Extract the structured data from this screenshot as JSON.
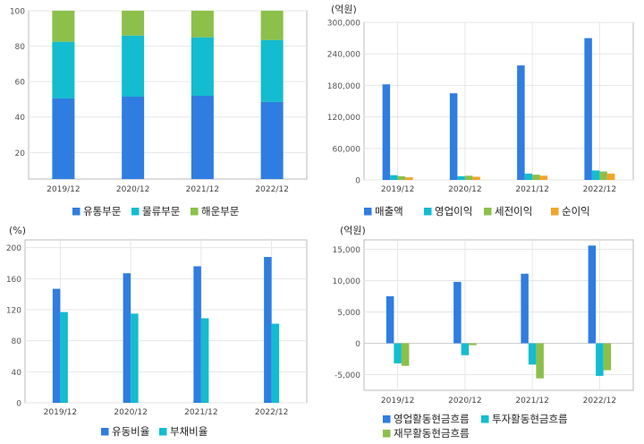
{
  "colors": {
    "blue": "#2f7de1",
    "cyan": "#14bccf",
    "green": "#8cc04a",
    "orange": "#f2a52a",
    "grid": "#e6e6e6",
    "axis": "#bbbbbb"
  },
  "chart_data": [
    {
      "type": "bar",
      "stacked": true,
      "categories": [
        "2019/12",
        "2020/12",
        "2021/12",
        "2022/12"
      ],
      "series": [
        {
          "name": "유통부문",
          "values": [
            50.5,
            51.5,
            52.0,
            48.5
          ]
        },
        {
          "name": "물류부문",
          "values": [
            32.0,
            34.5,
            33.0,
            35.0
          ]
        },
        {
          "name": "해운부문",
          "values": [
            17.5,
            14.0,
            15.0,
            16.5
          ]
        }
      ],
      "yticks": [
        "20",
        "40",
        "60",
        "80",
        "100"
      ],
      "ylim": [
        5,
        100
      ],
      "unit": "",
      "grid": true,
      "legend": "bottom"
    },
    {
      "type": "bar",
      "categories": [
        "2019/12",
        "2020/12",
        "2021/12",
        "2022/12"
      ],
      "series": [
        {
          "name": "매출액",
          "values": [
            182000,
            165000,
            218000,
            270000
          ]
        },
        {
          "name": "영업이익",
          "values": [
            9000,
            7000,
            12000,
            18000
          ]
        },
        {
          "name": "세전이익",
          "values": [
            7000,
            8000,
            10000,
            16000
          ]
        },
        {
          "name": "순이익",
          "values": [
            5000,
            6000,
            8000,
            12000
          ]
        }
      ],
      "yticks": [
        "0",
        "60,000",
        "120,000",
        "180,000",
        "240,000",
        "300,000"
      ],
      "ylim": [
        0,
        300000
      ],
      "unit": "(억원)",
      "grid": true,
      "legend": "bottom"
    },
    {
      "type": "bar",
      "categories": [
        "2019/12",
        "2020/12",
        "2021/12",
        "2022/12"
      ],
      "series": [
        {
          "name": "유동비율",
          "values": [
            147,
            167,
            176,
            188
          ]
        },
        {
          "name": "부채비율",
          "values": [
            117,
            115,
            109,
            102
          ]
        }
      ],
      "yticks": [
        "0",
        "40",
        "80",
        "120",
        "160",
        "200"
      ],
      "ylim": [
        0,
        210
      ],
      "unit": "(%)",
      "grid": true,
      "legend": "bottom"
    },
    {
      "type": "bar",
      "categories": [
        "2019/12",
        "2020/12",
        "2021/12",
        "2022/12"
      ],
      "series": [
        {
          "name": "영업활동현금흐름",
          "values": [
            7500,
            9800,
            11100,
            15600
          ]
        },
        {
          "name": "투자활동현금흐름",
          "values": [
            -3200,
            -1900,
            -3400,
            -5200
          ]
        },
        {
          "name": "재무활동현금흐름",
          "values": [
            -3600,
            -300,
            -5600,
            -4300
          ]
        }
      ],
      "yticks": [
        "-5,000",
        "0",
        "5,000",
        "10,000",
        "15,000"
      ],
      "ylim": [
        -7500,
        16500
      ],
      "unit": "(억원)",
      "grid": true,
      "legend": "bottom"
    }
  ]
}
